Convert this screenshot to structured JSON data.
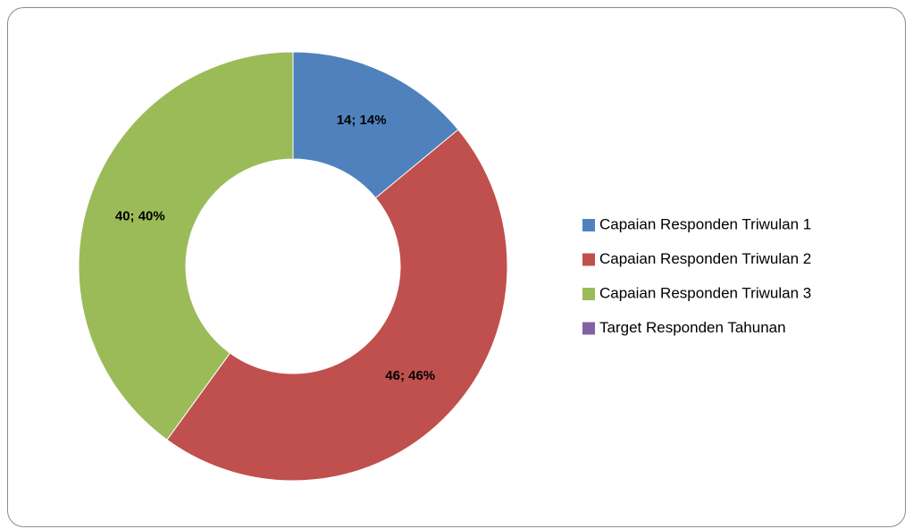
{
  "chart_data": {
    "type": "donut",
    "categories": [
      "Capaian Responden Triwulan 1",
      "Capaian Responden Triwulan 2",
      "Capaian Responden Triwulan 3",
      "Target Responden Tahunan"
    ],
    "values": [
      14,
      46,
      40,
      0
    ],
    "value_labels": [
      "14; 14%",
      "46; 46%",
      "40; 40%",
      null
    ],
    "colors": [
      "#4f81bd",
      "#c0504d",
      "#9bbb59",
      "#8064a2"
    ],
    "legend": "right"
  }
}
